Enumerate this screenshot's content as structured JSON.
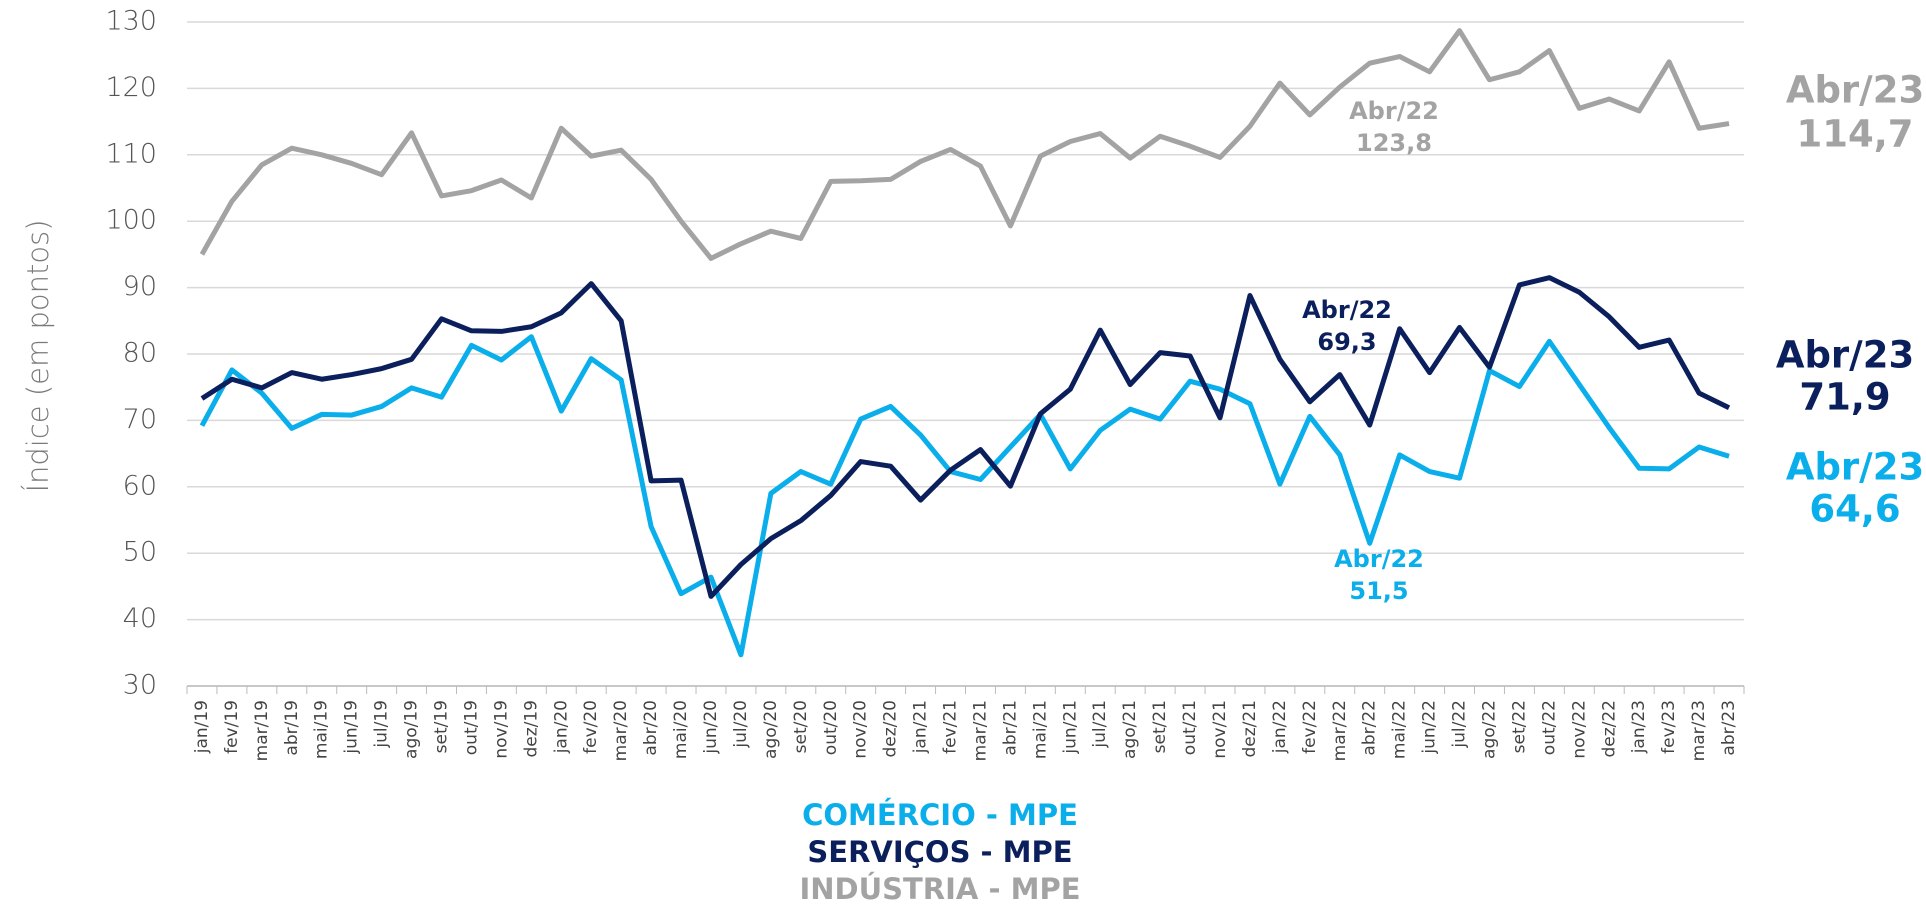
{
  "chart_data": {
    "type": "line",
    "y_label": "Índice (em pontos)",
    "categories": [
      "jan/19",
      "fev/19",
      "mar/19",
      "abr/19",
      "mai/19",
      "jun/19",
      "jul/19",
      "ago/19",
      "set/19",
      "out/19",
      "nov/19",
      "dez/19",
      "jan/20",
      "fev/20",
      "mar/20",
      "abr/20",
      "mai/20",
      "jun/20",
      "jul/20",
      "ago/20",
      "set/20",
      "out/20",
      "nov/20",
      "dez/20",
      "jan/21",
      "fev/21",
      "mar/21",
      "abr/21",
      "mai/21",
      "jun/21",
      "jul/21",
      "ago/21",
      "set/21",
      "out/21",
      "nov/21",
      "dez/21",
      "jan/22",
      "fev/22",
      "mar/22",
      "abr/22",
      "mai/22",
      "jun/22",
      "jul/22",
      "ago/22",
      "set/22",
      "out/22",
      "nov/22",
      "dez/22",
      "jan/23",
      "fev/23",
      "mar/23",
      "abr/23"
    ],
    "ylim": [
      30,
      130
    ],
    "yticks": [
      30,
      40,
      50,
      60,
      70,
      80,
      90,
      100,
      110,
      120,
      130
    ],
    "grid": true,
    "series": [
      {
        "name": "COMÉRCIO - MPE",
        "color": "#0aaeea",
        "values": [
          69.2,
          77.6,
          74.1,
          68.8,
          70.9,
          70.8,
          72.1,
          74.9,
          73.5,
          81.3,
          79.1,
          82.6,
          71.4,
          79.3,
          76.1,
          54,
          43.9,
          46.4,
          34.7,
          59,
          62.3,
          60.4,
          70.2,
          72.1,
          67.8,
          62.3,
          61.1,
          66,
          70.9,
          62.7,
          68.5,
          71.7,
          70.2,
          75.9,
          74.7,
          72.5,
          60.4,
          70.6,
          64.8,
          51.5,
          64.8,
          62.3,
          61.3,
          77.5,
          75.1,
          81.9,
          75.4,
          68.9,
          62.8,
          62.7,
          66,
          64.6
        ],
        "point_labels": [
          null,
          null,
          null,
          null,
          null,
          null,
          null,
          null,
          null,
          null,
          null,
          null,
          null,
          null,
          null,
          null,
          null,
          null,
          null,
          null,
          null,
          null,
          null,
          null,
          null,
          null,
          null,
          null,
          null,
          null,
          null,
          null,
          null,
          null,
          null,
          null,
          null,
          null,
          null,
          "Abr/22",
          null,
          null,
          null,
          null,
          null,
          null,
          null,
          null,
          null,
          null,
          null,
          "Abr/23"
        ],
        "value_labels": [
          null,
          null,
          null,
          null,
          null,
          null,
          null,
          null,
          null,
          null,
          null,
          null,
          null,
          null,
          null,
          null,
          null,
          null,
          null,
          null,
          null,
          null,
          null,
          null,
          null,
          null,
          null,
          null,
          null,
          null,
          null,
          null,
          null,
          null,
          null,
          null,
          null,
          null,
          null,
          "51,5",
          null,
          null,
          null,
          null,
          null,
          null,
          null,
          null,
          null,
          null,
          null,
          "64,6"
        ]
      },
      {
        "name": "SERVIÇOS - MPE",
        "color": "#0b1f5c",
        "values": [
          73.3,
          76.2,
          74.9,
          77.2,
          76.2,
          76.9,
          77.8,
          79.2,
          85.3,
          83.5,
          83.4,
          84.1,
          86.2,
          90.6,
          85,
          60.9,
          61,
          43.5,
          48.3,
          52.2,
          54.9,
          58.7,
          63.8,
          63.1,
          58,
          62.5,
          65.6,
          60.1,
          71,
          74.7,
          83.6,
          75.4,
          80.2,
          79.7,
          70.4,
          88.8,
          79.2,
          72.8,
          76.9,
          69.3,
          83.8,
          77.2,
          84,
          78,
          90.4,
          91.5,
          89.3,
          85.6,
          81,
          82.1,
          74.1,
          71.9
        ],
        "point_labels": [
          null,
          null,
          null,
          null,
          null,
          null,
          null,
          null,
          null,
          null,
          null,
          null,
          null,
          null,
          null,
          null,
          null,
          null,
          null,
          null,
          null,
          null,
          null,
          null,
          null,
          null,
          null,
          null,
          null,
          null,
          null,
          null,
          null,
          null,
          null,
          null,
          null,
          null,
          null,
          "Abr/22",
          null,
          null,
          null,
          null,
          null,
          null,
          null,
          null,
          null,
          null,
          null,
          "Abr/23"
        ],
        "value_labels": [
          null,
          null,
          null,
          null,
          null,
          null,
          null,
          null,
          null,
          null,
          null,
          null,
          null,
          null,
          null,
          null,
          null,
          null,
          null,
          null,
          null,
          null,
          null,
          null,
          null,
          null,
          null,
          null,
          null,
          null,
          null,
          null,
          null,
          null,
          null,
          null,
          null,
          null,
          null,
          "69,3",
          null,
          null,
          null,
          null,
          null,
          null,
          null,
          null,
          null,
          null,
          null,
          "71,9"
        ]
      },
      {
        "name": "INDÚSTRIA - MPE",
        "color": "#a3a3a3",
        "values": [
          95,
          103,
          108.5,
          111,
          110,
          108.7,
          107,
          113.3,
          103.8,
          104.6,
          106.2,
          103.5,
          114,
          109.8,
          110.7,
          106.3,
          100,
          94.4,
          96.6,
          98.5,
          97.4,
          106,
          106.1,
          106.3,
          109,
          110.8,
          108.3,
          99.3,
          109.8,
          112,
          113.2,
          109.5,
          112.8,
          111.3,
          109.6,
          114.3,
          120.8,
          116,
          120.2,
          123.8,
          124.8,
          122.5,
          128.7,
          121.3,
          122.5,
          125.7,
          117,
          118.4,
          116.6,
          124,
          114,
          114.7
        ],
        "point_labels": [
          null,
          null,
          null,
          null,
          null,
          null,
          null,
          null,
          null,
          null,
          null,
          null,
          null,
          null,
          null,
          null,
          null,
          null,
          null,
          null,
          null,
          null,
          null,
          null,
          null,
          null,
          null,
          null,
          null,
          null,
          null,
          null,
          null,
          null,
          null,
          null,
          null,
          null,
          null,
          "Abr/22",
          null,
          null,
          null,
          null,
          null,
          null,
          null,
          null,
          null,
          null,
          null,
          "Abr/23"
        ],
        "value_labels": [
          null,
          null,
          null,
          null,
          null,
          null,
          null,
          null,
          null,
          null,
          null,
          null,
          null,
          null,
          null,
          null,
          null,
          null,
          null,
          null,
          null,
          null,
          null,
          null,
          null,
          null,
          null,
          null,
          null,
          null,
          null,
          null,
          null,
          null,
          null,
          null,
          null,
          null,
          null,
          "123,8",
          null,
          null,
          null,
          null,
          null,
          null,
          null,
          null,
          null,
          null,
          null,
          "114,7"
        ]
      }
    ]
  }
}
